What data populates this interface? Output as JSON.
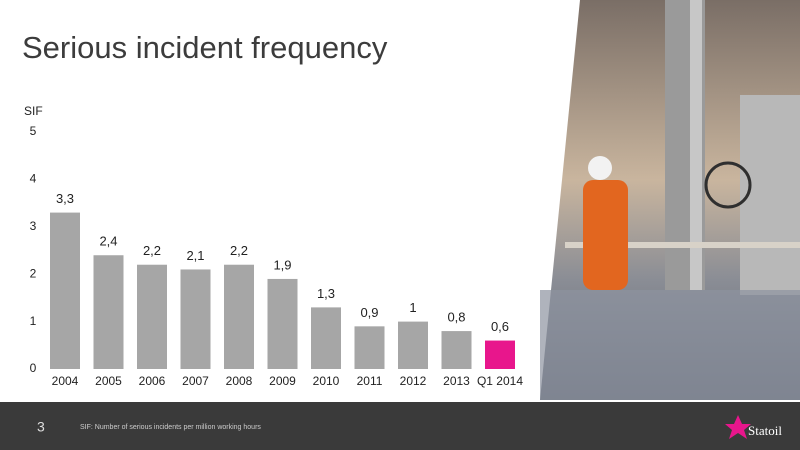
{
  "chart_data": {
    "type": "bar",
    "title": "Serious incident frequency",
    "y_label": "SIF",
    "categories": [
      "2004",
      "2005",
      "2006",
      "2007",
      "2008",
      "2009",
      "2010",
      "2011",
      "2012",
      "2013",
      "Q1 2014"
    ],
    "values": [
      3.3,
      2.4,
      2.2,
      2.1,
      2.2,
      1.9,
      1.3,
      0.9,
      1,
      0.8,
      0.6
    ],
    "value_labels": [
      "3,3",
      "2,4",
      "2,2",
      "2,1",
      "2,2",
      "1,9",
      "1,3",
      "0,9",
      "1",
      "0,8",
      "0,6"
    ],
    "colors": [
      "#a6a6a6",
      "#a6a6a6",
      "#a6a6a6",
      "#a6a6a6",
      "#a6a6a6",
      "#a6a6a6",
      "#a6a6a6",
      "#a6a6a6",
      "#a6a6a6",
      "#a6a6a6",
      "#e8168c"
    ],
    "ylim": [
      0,
      5
    ],
    "yticks": [
      0,
      1,
      2,
      3,
      4,
      5
    ],
    "grid": false
  },
  "footer": {
    "page_number": "3",
    "note": "SIF: Number of serious incidents per million working hours",
    "logo": "Statoil"
  }
}
